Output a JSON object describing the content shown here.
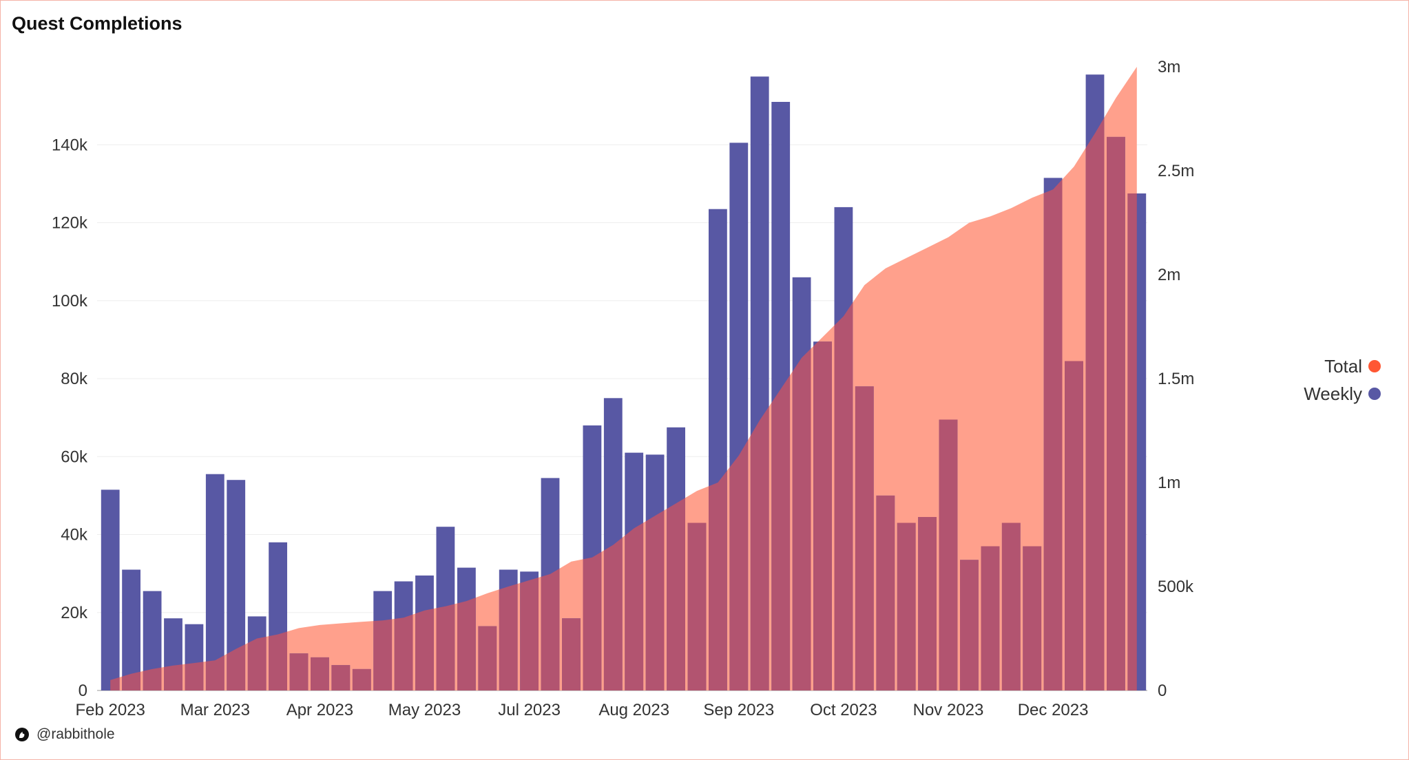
{
  "chart_data": {
    "type": "bar+area",
    "title": "Quest Completions",
    "credit": "@rabbithole",
    "colors": {
      "weekly": "#5858a4",
      "total": "#ff5733",
      "total_fill": "#ffa08c",
      "overlap": "#b25470"
    },
    "legend": {
      "placement": "right",
      "items": [
        {
          "label": "Total",
          "color": "#ff5733"
        },
        {
          "label": "Weekly",
          "color": "#5858a4"
        }
      ]
    },
    "x_tick_labels": [
      "Feb 2023",
      "Mar 2023",
      "Apr 2023",
      "May 2023",
      "Jul 2023",
      "Aug 2023",
      "Sep 2023",
      "Oct 2023",
      "Nov 2023",
      "Dec 2023"
    ],
    "x_tick_bar_index": [
      0,
      5,
      10,
      15,
      20,
      25,
      30,
      35,
      40,
      45
    ],
    "y_left": {
      "lim": [
        0,
        160000
      ],
      "ticks": [
        0,
        20000,
        40000,
        60000,
        80000,
        100000,
        120000,
        140000
      ],
      "tick_labels": [
        "0",
        "20k",
        "40k",
        "60k",
        "80k",
        "100k",
        "120k",
        "140k"
      ]
    },
    "y_right": {
      "lim": [
        0,
        3000000
      ],
      "ticks": [
        0,
        500000,
        1000000,
        1500000,
        2000000,
        2500000,
        3000000
      ],
      "tick_labels": [
        "0",
        "500k",
        "1m",
        "1.5m",
        "2m",
        "2.5m",
        "3m"
      ]
    },
    "grid": true,
    "series": [
      {
        "name": "Weekly",
        "type": "bar",
        "axis": "left",
        "values": [
          51500,
          31000,
          25500,
          18500,
          17000,
          55500,
          54000,
          19000,
          38000,
          9500,
          8500,
          6500,
          5500,
          25500,
          28000,
          29500,
          42000,
          31500,
          16500,
          31000,
          30500,
          54500,
          18500,
          68000,
          75000,
          61000,
          60500,
          67500,
          43000,
          123500,
          140500,
          157500,
          151000,
          106000,
          89500,
          124000,
          78000,
          50000,
          43000,
          44500,
          69500,
          33500,
          37000,
          43000,
          37000,
          131500,
          84500,
          158000,
          142000,
          127500
        ]
      },
      {
        "name": "Total",
        "type": "area",
        "axis": "right",
        "values": [
          50000,
          80000,
          103000,
          120000,
          132000,
          145000,
          200000,
          250000,
          270000,
          300000,
          315000,
          323000,
          330000,
          337000,
          350000,
          385000,
          405000,
          430000,
          468000,
          500000,
          530000,
          560000,
          620000,
          640000,
          700000,
          780000,
          840000,
          900000,
          960000,
          1000000,
          1130000,
          1300000,
          1450000,
          1600000,
          1700000,
          1800000,
          1950000,
          2030000,
          2080000,
          2130000,
          2180000,
          2250000,
          2280000,
          2320000,
          2370000,
          2410000,
          2520000,
          2680000,
          2850000,
          3000000
        ]
      }
    ]
  }
}
